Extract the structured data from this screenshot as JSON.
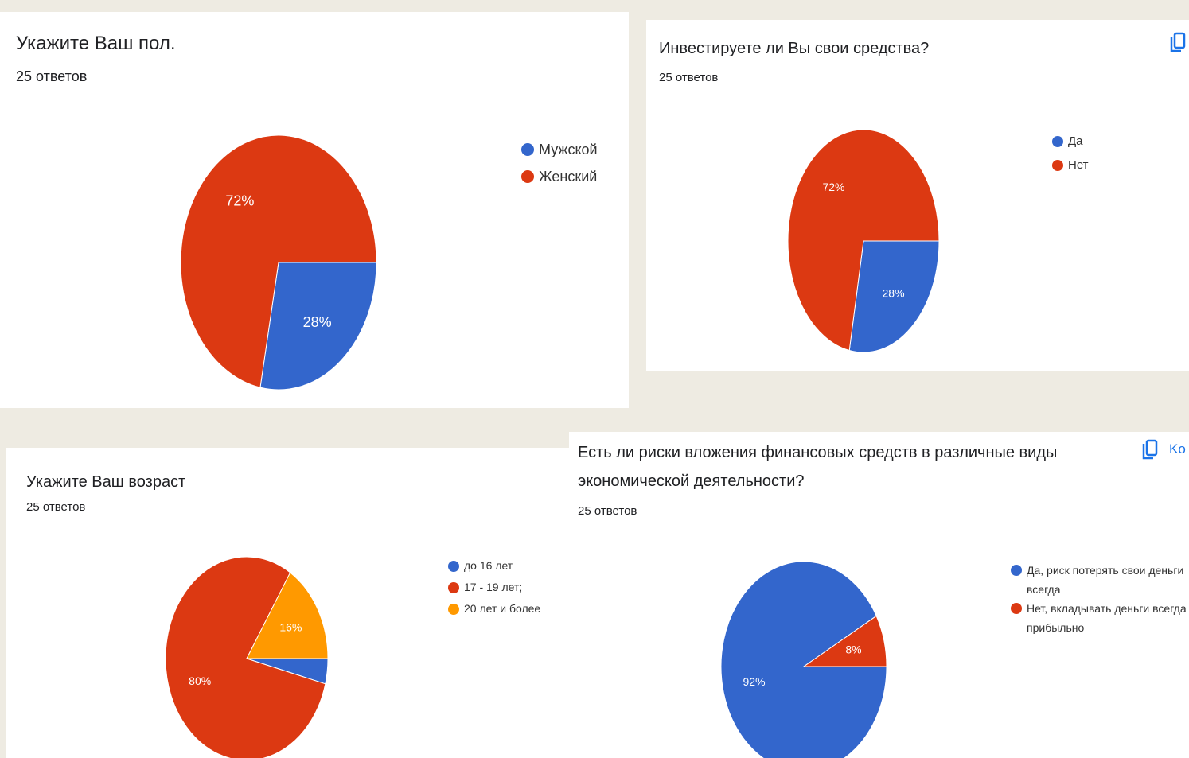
{
  "chart_data": [
    {
      "type": "pie",
      "title": "Укажите Ваш пол.",
      "subtitle": "25 ответов",
      "categories": [
        "Мужской",
        "Женский"
      ],
      "values": [
        28,
        72
      ],
      "value_labels": [
        "28%",
        "72%"
      ],
      "colors": [
        "#3366cc",
        "#dc3912"
      ]
    },
    {
      "type": "pie",
      "title": "Инвестируете ли Вы свои средства?",
      "subtitle": "25 ответов",
      "categories": [
        "Да",
        "Нет"
      ],
      "values": [
        28,
        72
      ],
      "value_labels": [
        "28%",
        "72%"
      ],
      "colors": [
        "#3366cc",
        "#dc3912"
      ]
    },
    {
      "type": "pie",
      "title": "Укажите Ваш возраст",
      "subtitle": "25 ответов",
      "categories": [
        "до 16 лет",
        "17 - 19 лет;",
        "20 лет и более"
      ],
      "values": [
        4,
        80,
        16
      ],
      "value_labels": [
        null,
        "80%",
        "16%"
      ],
      "colors": [
        "#3366cc",
        "#dc3912",
        "#ff9900"
      ]
    },
    {
      "type": "pie",
      "title": "Есть ли риски вложения финансовых средств в различные виды экономической деятельности?",
      "subtitle": "25 ответов",
      "categories": [
        "Да, риск потерять свои деньги всегда",
        "Нет, вкладывать деньги всегда прибыльно"
      ],
      "values": [
        92,
        8
      ],
      "value_labels": [
        "92%",
        "8%"
      ],
      "colors": [
        "#3366cc",
        "#dc3912"
      ]
    }
  ],
  "toolbar_text": "Ko"
}
